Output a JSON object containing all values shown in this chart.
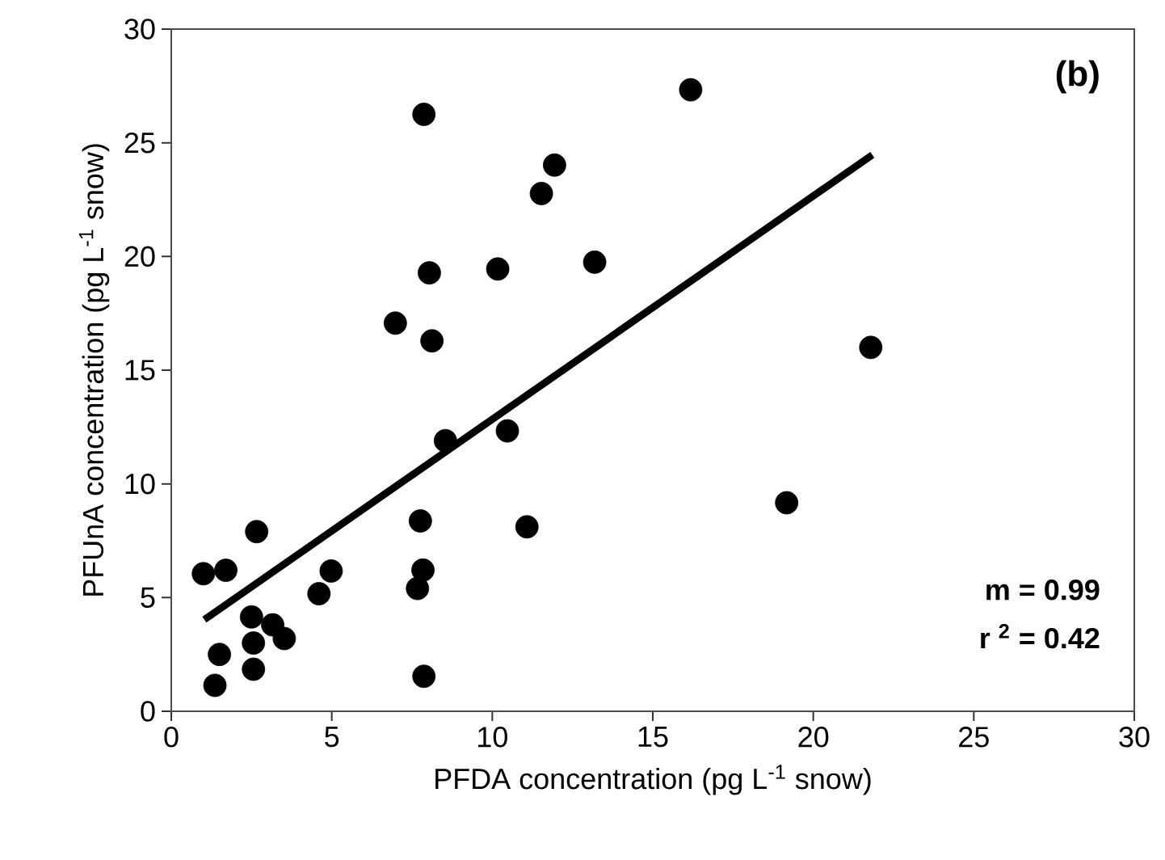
{
  "chart_data": {
    "type": "scatter",
    "xlabel": "PFDA concentration (pg L$^{-1}$ snow)",
    "ylabel": "PFUnA concentration (pg L$^{-1}$ snow)",
    "annotations": [
      "(b)",
      "m = 0.99",
      "r $^{2}$ = 0.42"
    ],
    "xlim": [
      0,
      30
    ],
    "ylim": [
      0,
      30
    ],
    "xticks": [
      0,
      5,
      10,
      15,
      20,
      25,
      30
    ],
    "yticks": [
      0,
      5,
      10,
      15,
      20,
      25,
      30
    ],
    "grid": false,
    "series": [
      {
        "color": "#000000",
        "marker": "circle",
        "x": [
          1.0,
          1.7,
          2.66,
          2.5,
          1.5,
          1.36,
          2.56,
          3.16,
          3.52,
          2.56,
          4.6,
          4.98,
          6.98,
          7.87,
          8.04,
          8.12,
          7.76,
          7.84,
          7.67,
          7.87,
          8.54,
          10.17,
          10.47,
          11.08,
          11.53,
          11.94,
          13.19,
          16.18,
          21.79,
          19.17
        ],
        "values": [
          6.05,
          6.2,
          7.9,
          4.15,
          2.5,
          1.14,
          3.0,
          3.8,
          3.2,
          1.85,
          5.17,
          6.17,
          17.07,
          26.25,
          19.28,
          16.29,
          8.37,
          6.21,
          5.4,
          1.54,
          11.9,
          19.45,
          12.33,
          8.11,
          22.77,
          24.02,
          19.75,
          27.33,
          16.0,
          9.17
        ]
      },
      {
        "type": "line",
        "color": "#000000",
        "marker": "none",
        "x": [
          1.03,
          21.84
        ],
        "values": [
          4.03,
          24.47
        ]
      }
    ]
  }
}
